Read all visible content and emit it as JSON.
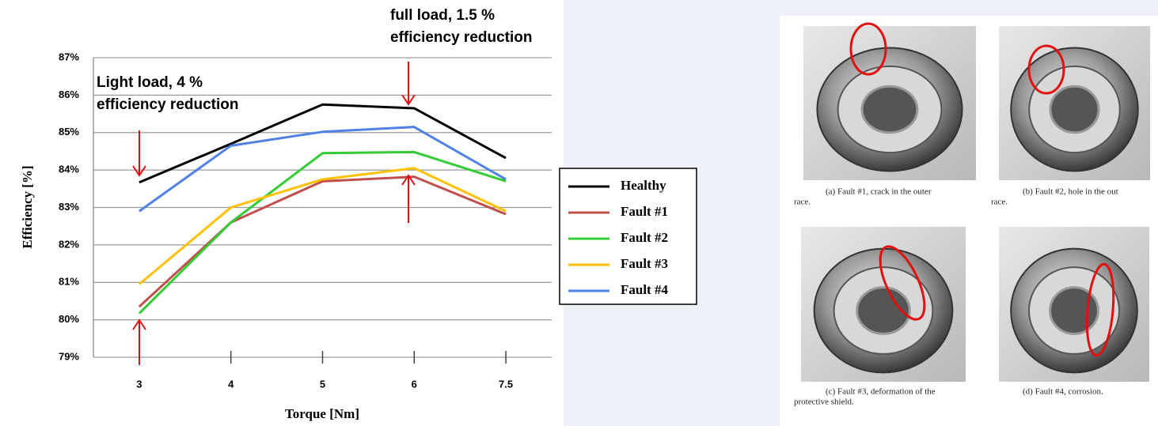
{
  "chart_data": {
    "type": "line",
    "annotations": [
      [
        "Light load, 4 %",
        "efficiency reduction"
      ],
      [
        "full load, 1.5 %",
        "efficiency reduction"
      ]
    ],
    "xlabel": "Torque [Nm]",
    "ylabel": "Efficiency [%]",
    "categories": [
      "3",
      "4",
      "5",
      "6",
      "7.5"
    ],
    "series": [
      {
        "name": "Healthy",
        "color": "#000000",
        "values": [
          83.67,
          84.7,
          85.75,
          85.65,
          84.32
        ]
      },
      {
        "name": "Fault #1",
        "color": "#c0504d",
        "values": [
          80.35,
          82.6,
          83.7,
          83.82,
          82.82
        ]
      },
      {
        "name": "Fault #2",
        "color": "#33cc33",
        "values": [
          80.17,
          82.6,
          84.45,
          84.48,
          83.7
        ]
      },
      {
        "name": "Fault #3",
        "color": "#ffc000",
        "values": [
          80.95,
          83.0,
          83.75,
          84.05,
          82.9
        ]
      },
      {
        "name": "Fault #4",
        "color": "#4f81e6",
        "values": [
          82.9,
          84.65,
          85.02,
          85.15,
          83.75
        ]
      }
    ],
    "ylim": [
      79,
      87
    ],
    "yticks": [
      {
        "value": 79,
        "label": "79%"
      },
      {
        "value": 80,
        "label": "80%"
      },
      {
        "value": 81,
        "label": "81%"
      },
      {
        "value": 82,
        "label": "82%"
      },
      {
        "value": 83,
        "label": "83%"
      },
      {
        "value": 84,
        "label": "84%"
      },
      {
        "value": 85,
        "label": "85%"
      },
      {
        "value": 86,
        "label": "86%"
      },
      {
        "value": 87,
        "label": "87%"
      }
    ],
    "grid": true,
    "legend": "right"
  },
  "figure": {
    "panels": [
      {
        "caption": [
          "(a) Fault #1, crack in the outer",
          "race."
        ]
      },
      {
        "caption": [
          "(b) Fault #2, hole in the out",
          "race."
        ]
      },
      {
        "caption": [
          "(c) Fault #3, deformation of the",
          "protective shield."
        ]
      },
      {
        "caption": [
          "(d) Fault #4, corrosion."
        ]
      }
    ]
  }
}
